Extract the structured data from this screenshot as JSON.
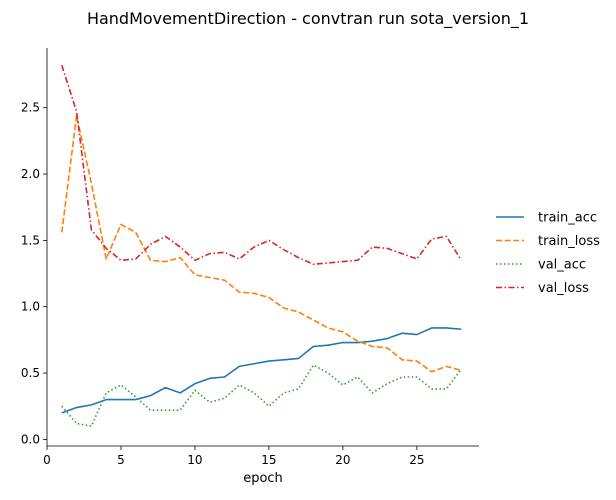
{
  "chart_data": {
    "type": "line",
    "title": "HandMovementDirection - convtran run sota_version_1",
    "xlabel": "epoch",
    "ylabel": "",
    "xlim": [
      0,
      29.2
    ],
    "ylim": [
      -0.05,
      2.95
    ],
    "xticks": [
      0,
      5,
      10,
      15,
      20,
      25
    ],
    "yticks": [
      0.0,
      0.5,
      1.0,
      1.5,
      2.0,
      2.5
    ],
    "xtick_labels": [
      "0",
      "5",
      "10",
      "15",
      "20",
      "25"
    ],
    "ytick_labels": [
      "0.0",
      "0.5",
      "1.0",
      "1.5",
      "2.0",
      "2.5"
    ],
    "grid": false,
    "legend_position": "right",
    "x": [
      1,
      2,
      3,
      4,
      5,
      6,
      7,
      8,
      9,
      10,
      11,
      12,
      13,
      14,
      15,
      16,
      17,
      18,
      19,
      20,
      21,
      22,
      23,
      24,
      25,
      26,
      27,
      28
    ],
    "series": [
      {
        "name": "train_acc",
        "color": "#1f77b4",
        "dash": "solid",
        "values": [
          0.2,
          0.24,
          0.26,
          0.3,
          0.3,
          0.3,
          0.33,
          0.39,
          0.35,
          0.42,
          0.46,
          0.47,
          0.55,
          0.57,
          0.59,
          0.6,
          0.61,
          0.7,
          0.71,
          0.73,
          0.73,
          0.74,
          0.76,
          0.8,
          0.79,
          0.84,
          0.84,
          0.83
        ]
      },
      {
        "name": "train_loss",
        "color": "#ff7f0e",
        "dash": "dashed",
        "values": [
          1.56,
          2.44,
          1.93,
          1.36,
          1.62,
          1.56,
          1.35,
          1.34,
          1.37,
          1.24,
          1.22,
          1.2,
          1.11,
          1.1,
          1.07,
          0.99,
          0.96,
          0.9,
          0.84,
          0.81,
          0.74,
          0.7,
          0.69,
          0.6,
          0.59,
          0.51,
          0.55,
          0.52
        ]
      },
      {
        "name": "val_acc",
        "color": "#2ca02c",
        "dash": "dotted",
        "values": [
          0.25,
          0.12,
          0.1,
          0.35,
          0.41,
          0.32,
          0.22,
          0.22,
          0.22,
          0.37,
          0.28,
          0.31,
          0.41,
          0.35,
          0.25,
          0.35,
          0.38,
          0.56,
          0.5,
          0.41,
          0.47,
          0.35,
          0.42,
          0.47,
          0.47,
          0.38,
          0.38,
          0.53
        ]
      },
      {
        "name": "val_loss",
        "color": "#d62728",
        "dash": "dashdot",
        "values": [
          2.82,
          2.47,
          1.58,
          1.44,
          1.35,
          1.36,
          1.47,
          1.53,
          1.45,
          1.35,
          1.4,
          1.41,
          1.36,
          1.45,
          1.5,
          1.43,
          1.37,
          1.32,
          1.33,
          1.34,
          1.35,
          1.45,
          1.44,
          1.4,
          1.36,
          1.51,
          1.53,
          1.35
        ]
      }
    ]
  }
}
